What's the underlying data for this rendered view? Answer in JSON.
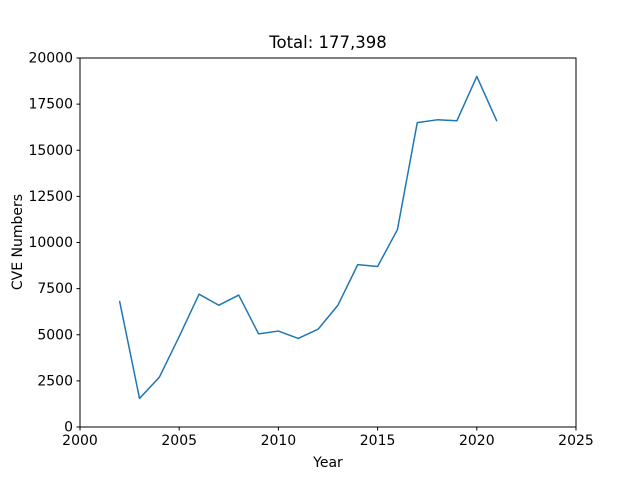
{
  "figure": {
    "background": "#ffffff"
  },
  "chart_data": {
    "type": "line",
    "title": "Total: 177,398",
    "xlabel": "Year",
    "ylabel": "CVE Numbers",
    "x": [
      2002,
      2003,
      2004,
      2005,
      2006,
      2007,
      2008,
      2009,
      2010,
      2011,
      2012,
      2013,
      2014,
      2015,
      2016,
      2017,
      2018,
      2019,
      2020,
      2021
    ],
    "y": [
      6800,
      1548,
      2700,
      4900,
      7200,
      6600,
      7150,
      5050,
      5200,
      4800,
      5300,
      6600,
      8800,
      8700,
      10700,
      16500,
      16650,
      16600,
      19000,
      16600
    ],
    "total": 177398,
    "xlim": [
      2000,
      2025
    ],
    "ylim": [
      0,
      20000
    ],
    "xticks": [
      2000,
      2005,
      2010,
      2015,
      2020,
      2025
    ],
    "yticks": [
      0,
      2500,
      5000,
      7500,
      10000,
      12500,
      15000,
      17500,
      20000
    ],
    "line_color": "#1f77b4",
    "axis_color": "#000000",
    "grid": false,
    "legend": "none"
  }
}
